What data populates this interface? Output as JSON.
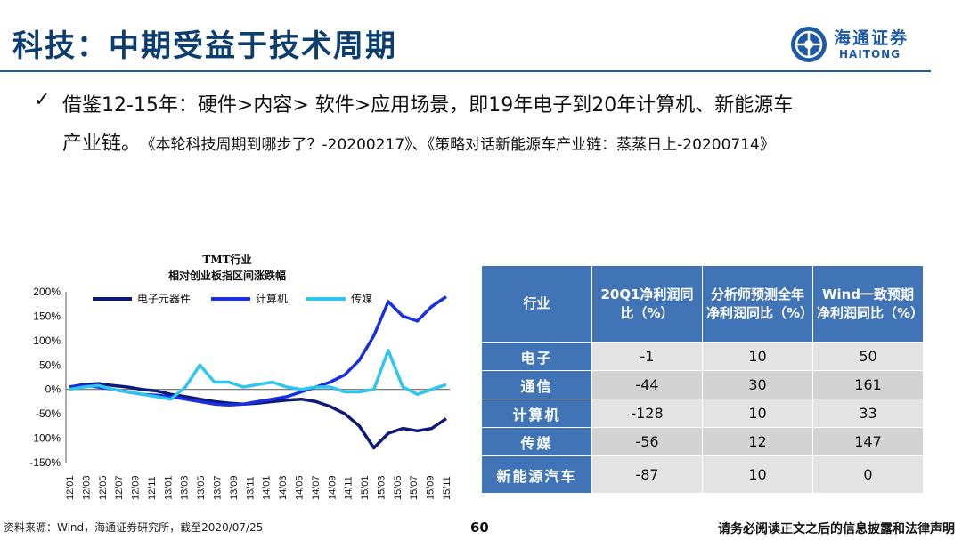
{
  "header": {
    "title": "科技：中期受益于技术周期",
    "logo_cn": "海通证券",
    "logo_en": "HAITONG",
    "brand_color": "#1d5aa3"
  },
  "bullet": {
    "icon": "check-mark-icon",
    "line1": "借鉴12-15年：硬件>内容> 软件>应用场景，即19年电子到20年计算机、新能源车",
    "line2": "产业链。",
    "ref": "《本轮科技周期到哪步了？-20200217》、《策略对话新能源车产业链：蒸蒸日上-20200714》"
  },
  "chart_data": {
    "type": "line",
    "title": "TMT行业",
    "subtitle": "相对创业板指区间涨跌幅",
    "ylim": [
      -150,
      200
    ],
    "yticks": [
      "200%",
      "150%",
      "100%",
      "50%",
      "0%",
      "-50%",
      "-100%",
      "-150%"
    ],
    "x_ticks": [
      "12/01",
      "12/03",
      "12/05",
      "12/07",
      "12/09",
      "12/11",
      "13/01",
      "13/03",
      "13/05",
      "13/07",
      "13/09",
      "13/11",
      "14/01",
      "14/03",
      "14/05",
      "14/07",
      "14/09",
      "14/11",
      "15/01",
      "15/03",
      "15/05",
      "15/07",
      "15/09",
      "15/11"
    ],
    "legend_position": "top",
    "series": [
      {
        "name": "电子元器件",
        "color": "#0e1a7a",
        "values": [
          5,
          10,
          12,
          8,
          5,
          0,
          -3,
          -10,
          -15,
          -20,
          -25,
          -28,
          -30,
          -28,
          -25,
          -22,
          -20,
          -25,
          -35,
          -50,
          -75,
          -120,
          -90,
          -80,
          -85,
          -80,
          -60
        ]
      },
      {
        "name": "计算机",
        "color": "#1a2fe0",
        "values": [
          5,
          8,
          5,
          0,
          -5,
          -10,
          -12,
          -15,
          -20,
          -25,
          -30,
          -32,
          -30,
          -25,
          -20,
          -15,
          -5,
          5,
          15,
          30,
          60,
          110,
          180,
          150,
          140,
          170,
          190
        ]
      },
      {
        "name": "传媒",
        "color": "#2ec5f0",
        "values": [
          0,
          5,
          8,
          0,
          -5,
          -10,
          -15,
          -20,
          5,
          50,
          15,
          15,
          5,
          10,
          15,
          5,
          0,
          5,
          5,
          -5,
          -5,
          0,
          80,
          5,
          -10,
          0,
          10
        ]
      }
    ]
  },
  "table": {
    "headers": [
      "行业",
      "20Q1净利润同比（%）",
      "分析师预测全年净利润同比（%）",
      "Wind一致预期净利润同比（%）"
    ],
    "rows": [
      {
        "industry": "电子",
        "q1": "-1",
        "analyst": "10",
        "wind": "50"
      },
      {
        "industry": "通信",
        "q1": "-44",
        "analyst": "30",
        "wind": "161"
      },
      {
        "industry": "计算机",
        "q1": "-128",
        "analyst": "10",
        "wind": "33"
      },
      {
        "industry": "传媒",
        "q1": "-56",
        "analyst": "12",
        "wind": "147"
      },
      {
        "industry": "新能源汽车",
        "q1": "-87",
        "analyst": "10",
        "wind": "0"
      }
    ],
    "header_color": "#4174b6"
  },
  "footer": {
    "source": "资料来源：Wind，海通证券研究所，截至2020/07/25",
    "page": "60",
    "legal": "请务必阅读正文之后的信息披露和法律声明"
  }
}
